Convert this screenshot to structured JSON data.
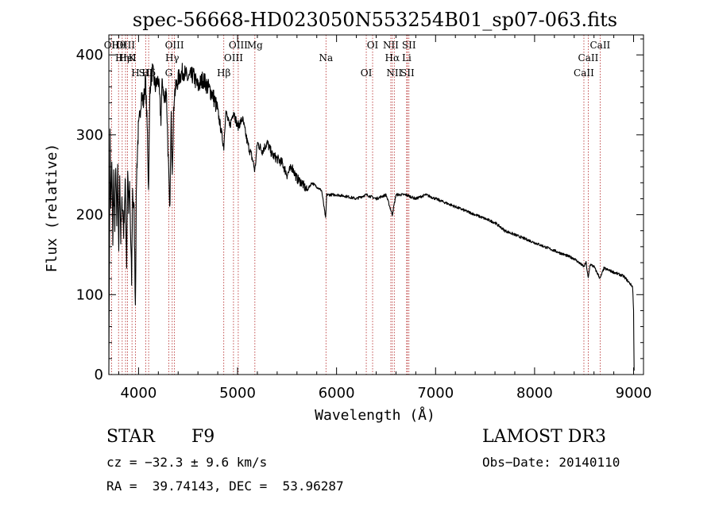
{
  "chart_data": {
    "type": "line",
    "title": "spec-56668-HD023050N553254B01_sp07-063.fits",
    "xlabel": "Wavelength (Å)",
    "ylabel": "Flux (relative)",
    "xlim": [
      3700,
      9100
    ],
    "ylim": [
      0,
      4250
    ],
    "xticks": [
      4000,
      5000,
      6000,
      7000,
      8000,
      9000
    ],
    "yticks": [
      0,
      100,
      200,
      300,
      400
    ],
    "ytick_labels": [
      "0",
      "100",
      "200",
      "300",
      "400"
    ],
    "y_label_scale": 10,
    "grid": false,
    "series": [
      {
        "name": "flux",
        "anchors": [
          [
            3700,
            20
          ],
          [
            3712,
            3000
          ],
          [
            3720,
            2000
          ],
          [
            3730,
            2600
          ],
          [
            3740,
            1700
          ],
          [
            3750,
            2500
          ],
          [
            3760,
            1800
          ],
          [
            3770,
            2700
          ],
          [
            3780,
            1800
          ],
          [
            3790,
            2500
          ],
          [
            3800,
            1600
          ],
          [
            3810,
            2600
          ],
          [
            3820,
            1700
          ],
          [
            3835,
            2200
          ],
          [
            3850,
            1800
          ],
          [
            3865,
            2400
          ],
          [
            3880,
            1400
          ],
          [
            3890,
            2600
          ],
          [
            3900,
            2100
          ],
          [
            3910,
            2300
          ],
          [
            3930,
            1150
          ],
          [
            3940,
            2300
          ],
          [
            3955,
            2000
          ],
          [
            3968,
            900
          ],
          [
            3980,
            2500
          ],
          [
            3995,
            3000
          ],
          [
            4010,
            3200
          ],
          [
            4030,
            3500
          ],
          [
            4050,
            3400
          ],
          [
            4070,
            3700
          ],
          [
            4090,
            3000
          ],
          [
            4101,
            2300
          ],
          [
            4115,
            3600
          ],
          [
            4140,
            3800
          ],
          [
            4170,
            3600
          ],
          [
            4200,
            3700
          ],
          [
            4226,
            3200
          ],
          [
            4240,
            3700
          ],
          [
            4260,
            3400
          ],
          [
            4280,
            3600
          ],
          [
            4300,
            2700
          ],
          [
            4315,
            2000
          ],
          [
            4330,
            3200
          ],
          [
            4340,
            2600
          ],
          [
            4360,
            3500
          ],
          [
            4400,
            3700
          ],
          [
            4450,
            3800
          ],
          [
            4500,
            3700
          ],
          [
            4550,
            3750
          ],
          [
            4600,
            3600
          ],
          [
            4650,
            3700
          ],
          [
            4700,
            3600
          ],
          [
            4750,
            3500
          ],
          [
            4800,
            3300
          ],
          [
            4861,
            2850
          ],
          [
            4880,
            3300
          ],
          [
            4920,
            3100
          ],
          [
            4960,
            3300
          ],
          [
            5000,
            3100
          ],
          [
            5050,
            3200
          ],
          [
            5100,
            2900
          ],
          [
            5150,
            2700
          ],
          [
            5175,
            2550
          ],
          [
            5200,
            2900
          ],
          [
            5250,
            2800
          ],
          [
            5300,
            2900
          ],
          [
            5350,
            2750
          ],
          [
            5400,
            2700
          ],
          [
            5450,
            2650
          ],
          [
            5500,
            2500
          ],
          [
            5550,
            2600
          ],
          [
            5600,
            2450
          ],
          [
            5650,
            2400
          ],
          [
            5700,
            2300
          ],
          [
            5750,
            2400
          ],
          [
            5800,
            2350
          ],
          [
            5850,
            2300
          ],
          [
            5890,
            1950
          ],
          [
            5900,
            2250
          ],
          [
            6000,
            2250
          ],
          [
            6100,
            2230
          ],
          [
            6200,
            2200
          ],
          [
            6300,
            2250
          ],
          [
            6400,
            2200
          ],
          [
            6500,
            2250
          ],
          [
            6563,
            2000
          ],
          [
            6600,
            2250
          ],
          [
            6700,
            2250
          ],
          [
            6800,
            2200
          ],
          [
            6900,
            2250
          ],
          [
            7000,
            2200
          ],
          [
            7100,
            2150
          ],
          [
            7200,
            2100
          ],
          [
            7300,
            2050
          ],
          [
            7400,
            2000
          ],
          [
            7500,
            1950
          ],
          [
            7600,
            1900
          ],
          [
            7700,
            1800
          ],
          [
            7800,
            1750
          ],
          [
            7900,
            1700
          ],
          [
            8000,
            1650
          ],
          [
            8100,
            1600
          ],
          [
            8200,
            1550
          ],
          [
            8300,
            1500
          ],
          [
            8400,
            1450
          ],
          [
            8498,
            1350
          ],
          [
            8520,
            1400
          ],
          [
            8542,
            1200
          ],
          [
            8560,
            1380
          ],
          [
            8600,
            1350
          ],
          [
            8662,
            1200
          ],
          [
            8700,
            1330
          ],
          [
            8800,
            1280
          ],
          [
            8900,
            1230
          ],
          [
            8990,
            1100
          ],
          [
            9000,
            800
          ],
          [
            9005,
            50
          ]
        ]
      }
    ],
    "lines": [
      {
        "label": "Hθ",
        "x": 3798
      },
      {
        "label": "K",
        "x": 3934
      },
      {
        "label": "Hδ",
        "x": 4102
      },
      {
        "label": "OII",
        "x": 3727
      },
      {
        "label": "HeI",
        "x": 3889
      },
      {
        "label": "SII",
        "x": 4072
      },
      {
        "label": "OIII",
        "x": 3869
      },
      {
        "label": "Hη",
        "x": 3835
      },
      {
        "label": "H",
        "x": 3969
      },
      {
        "label": "OIII",
        "x": 4363
      },
      {
        "label": "Hγ",
        "x": 4340
      },
      {
        "label": "G",
        "x": 4305
      },
      {
        "label": "OIII",
        "x": 5007
      },
      {
        "label": "OIII",
        "x": 4959
      },
      {
        "label": "Hβ",
        "x": 4861
      },
      {
        "label": "Mg",
        "x": 5175
      },
      {
        "label": "Na",
        "x": 5893
      },
      {
        "label": "OI",
        "x": 6300
      },
      {
        "label": "OI",
        "x": 6364
      },
      {
        "label": "Hα",
        "x": 6563
      },
      {
        "label": "SII",
        "x": 6716
      },
      {
        "label": "NII",
        "x": 6548
      },
      {
        "label": "Li",
        "x": 6708
      },
      {
        "label": "NII",
        "x": 6583
      },
      {
        "label": "SII",
        "x": 6731
      },
      {
        "label": "CaII",
        "x": 8542
      },
      {
        "label": "CaII",
        "x": 8498
      },
      {
        "label": "CaII",
        "x": 8662
      }
    ]
  },
  "info": {
    "object_class": "STAR",
    "subclass": "F9",
    "survey": "LAMOST DR3",
    "cz": "cz = −32.3 ± 9.6 km/s",
    "obs_date": "Obs−Date: 20140110",
    "coords": "RA =  39.74143, DEC =  53.96287"
  }
}
